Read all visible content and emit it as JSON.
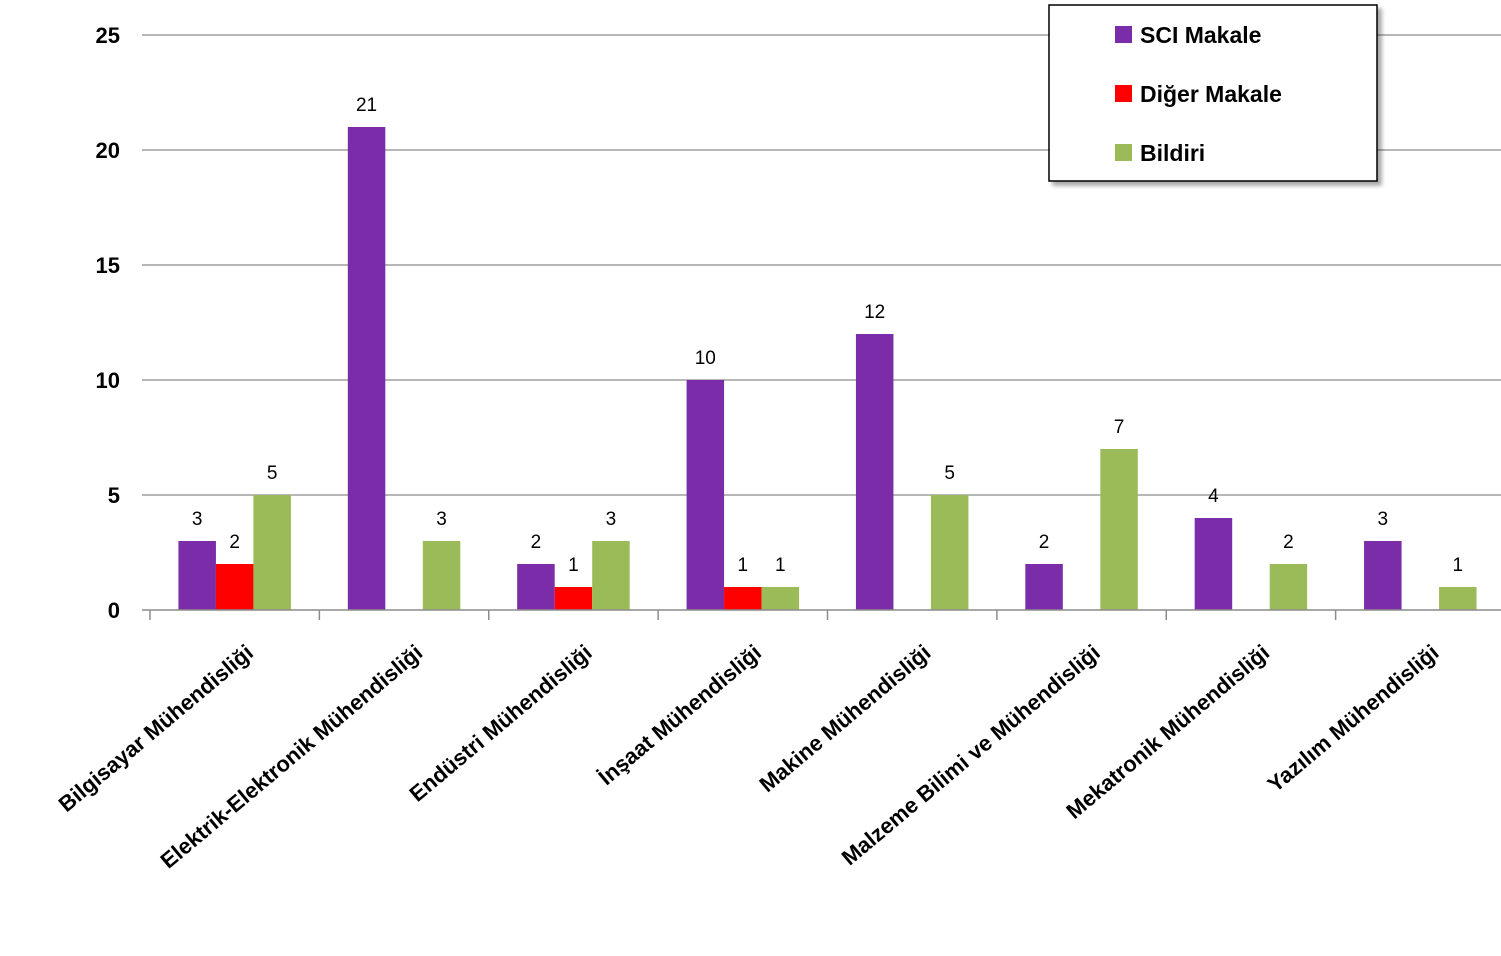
{
  "chart_data": {
    "type": "bar",
    "title": "",
    "xlabel": "",
    "ylabel": "",
    "ylim": [
      0,
      25
    ],
    "yticks": [
      0,
      5,
      10,
      15,
      20,
      25
    ],
    "grid": true,
    "legend_position": "top-right",
    "categories": [
      "Bilgisayar Mühendisliği",
      "Elektrik-Elektronik Mühendisliği",
      "Endüstri Mühendisliği",
      "İnşaat Mühendisliği",
      "Makine Mühendisliği",
      "Malzeme Bilimi ve Mühendisliği",
      "Mekatronik Mühendisliği",
      "Yazılım Mühendisliği"
    ],
    "series": [
      {
        "name": "SCI Makale",
        "color": "#7B2CA8",
        "values": [
          3,
          21,
          2,
          10,
          12,
          2,
          4,
          3
        ]
      },
      {
        "name": "Diğer Makale",
        "color": "#FF0000",
        "values": [
          2,
          null,
          1,
          1,
          null,
          null,
          null,
          null
        ]
      },
      {
        "name": "Bildiri",
        "color": "#9BBB59",
        "values": [
          5,
          3,
          3,
          1,
          5,
          7,
          2,
          1
        ]
      }
    ]
  }
}
